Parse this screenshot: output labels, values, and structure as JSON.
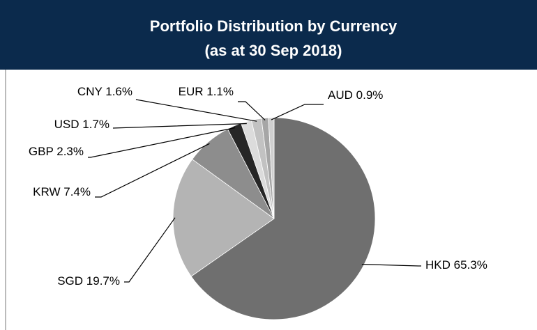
{
  "chart_data": {
    "type": "pie",
    "title": "Portfolio Distribution by Currency",
    "subtitle": "(as at 30 Sep 2018)",
    "categories": [
      "HKD",
      "SGD",
      "KRW",
      "GBP",
      "USD",
      "CNY",
      "EUR",
      "AUD"
    ],
    "values": [
      65.3,
      19.7,
      7.4,
      2.3,
      1.7,
      1.6,
      1.1,
      0.9
    ],
    "value_labels": [
      "65.3%",
      "19.7%",
      "7.4%",
      "2.3%",
      "1.7%",
      "1.6%",
      "1.1%",
      "0.9%"
    ],
    "colors": [
      "#6f6f6f",
      "#b4b4b4",
      "#8d8d8d",
      "#262626",
      "#dcdcdc",
      "#c2c2c2",
      "#a6a6a6",
      "#cfcfcf"
    ]
  }
}
